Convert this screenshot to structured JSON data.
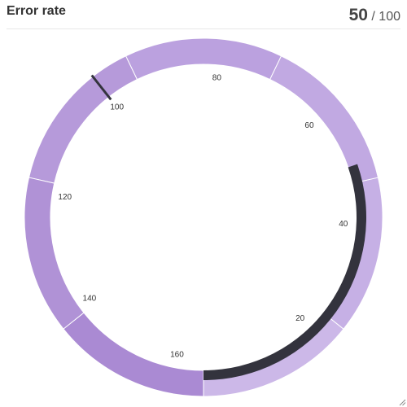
{
  "panel": {
    "title": "Error rate"
  },
  "readout": {
    "value": "50",
    "max": "/ 100"
  },
  "gauge": {
    "value": 50,
    "max": 100,
    "scale_min": 0,
    "scale_max": 165,
    "colors": {
      "bar": "#33333d",
      "target": "#33333d",
      "bands": [
        "#ccb8e8",
        "#c6b0e5",
        "#c1a9e2",
        "#bba1df",
        "#b69ada",
        "#b092d6",
        "#aa8ad3"
      ]
    },
    "tick_labels": [
      "20",
      "40",
      "60",
      "80",
      "100",
      "120",
      "140",
      "160"
    ],
    "target": 100
  },
  "icons": {
    "resize": "resize-handle-icon"
  }
}
